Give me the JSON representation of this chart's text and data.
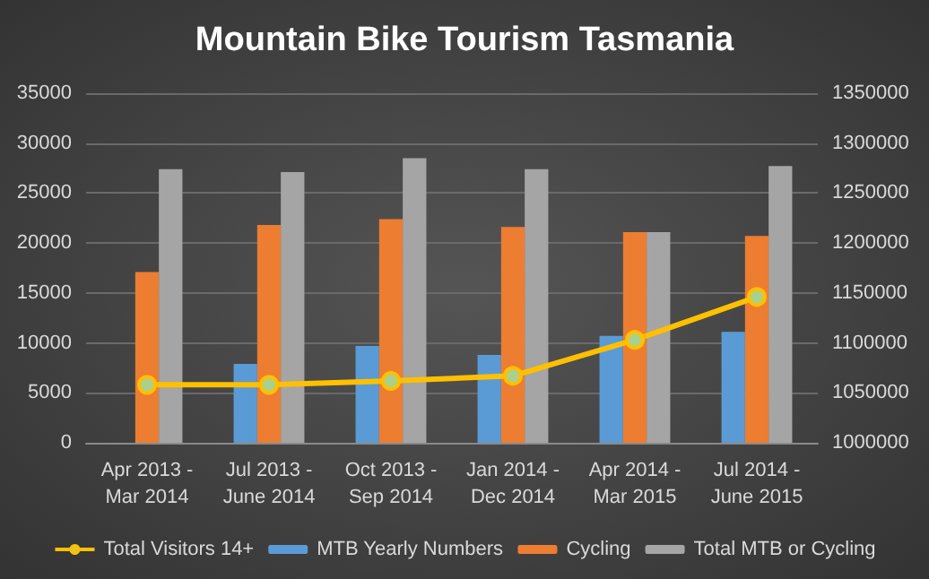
{
  "chart_data": {
    "type": "bar",
    "title": "Mountain Bike Tourism Tasmania",
    "categories": [
      "Apr 2013 - Mar 2014",
      "Jul 2013 - June 2014",
      "Oct 2013 - Sep 2014",
      "Jan 2014 - Dec 2014",
      "Apr 2014 - Mar 2015",
      "Jul 2014 - June 2015"
    ],
    "series": [
      {
        "name": "Total Visitors 14+",
        "type": "line",
        "axis": "y2",
        "color": "#ffc000",
        "marker": "circle",
        "values": [
          1058000,
          1058000,
          1062000,
          1067000,
          1103000,
          1146000
        ]
      },
      {
        "name": "MTB Yearly Numbers",
        "color": "#5b9bd5",
        "values": [
          null,
          7900,
          9700,
          8800,
          10700,
          11100
        ]
      },
      {
        "name": "Cycling",
        "color": "#ed7d31",
        "values": [
          17100,
          21800,
          22400,
          21600,
          21100,
          20700
        ]
      },
      {
        "name": "Total MTB or Cycling",
        "color": "#a5a5a5",
        "values": [
          27400,
          27100,
          28500,
          27400,
          21100,
          27700
        ]
      }
    ],
    "ylim": [
      0,
      35000
    ],
    "yticks": [
      0,
      5000,
      10000,
      15000,
      20000,
      25000,
      30000,
      35000
    ],
    "y2lim": [
      1000000,
      1350000
    ],
    "y2ticks": [
      1000000,
      1050000,
      1100000,
      1150000,
      1200000,
      1250000,
      1300000,
      1350000
    ],
    "grid": "y",
    "legend": "bottom"
  }
}
